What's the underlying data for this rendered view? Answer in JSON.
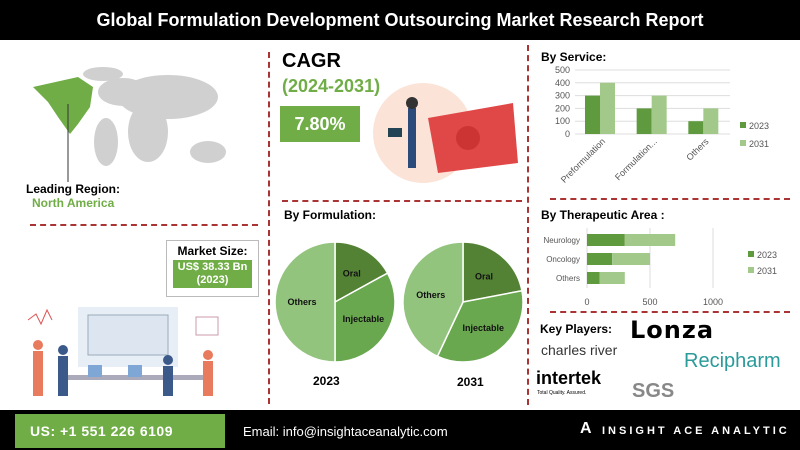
{
  "header": {
    "title": "Global Formulation Development Outsourcing Market Research Report"
  },
  "region": {
    "label": "Leading Region:",
    "value": "North America"
  },
  "market_size": {
    "label": "Market Size:",
    "value": "US$ 38.33 Bn",
    "year": "(2023)"
  },
  "cagr": {
    "label": "CAGR",
    "period": "(2024-2031)",
    "value": "7.80%"
  },
  "colors": {
    "accent": "#70ad47",
    "dark": "#548235",
    "light": "#a9d08e",
    "divider": "#aa3333"
  },
  "chart_data": [
    {
      "type": "bar",
      "title": "By Service:",
      "categories": [
        "Preformulation",
        "Formulation...",
        "Others"
      ],
      "series": [
        {
          "name": "2023",
          "values": [
            300,
            200,
            100
          ]
        },
        {
          "name": "2031",
          "values": [
            400,
            300,
            200
          ]
        }
      ],
      "ylim": [
        0,
        500
      ],
      "yticks": [
        0,
        100,
        200,
        300,
        400,
        500
      ],
      "legend": "right",
      "grid": true
    },
    {
      "type": "bar",
      "orientation": "horizontal-stacked",
      "title": "By Therapeutic Area :",
      "categories": [
        "Neurology",
        "Oncology",
        "Others"
      ],
      "series": [
        {
          "name": "2023",
          "values": [
            300,
            200,
            100
          ]
        },
        {
          "name": "2031",
          "values": [
            400,
            300,
            200
          ]
        }
      ],
      "xlim": [
        0,
        1000
      ],
      "xticks": [
        0,
        500,
        1000
      ],
      "legend": "right",
      "grid": true
    },
    {
      "type": "pie",
      "title": "By Formulation:",
      "label": "2023",
      "slices": [
        {
          "name": "Oral",
          "value": 17
        },
        {
          "name": "Injectable",
          "value": 33
        },
        {
          "name": "Others",
          "value": 50
        }
      ]
    },
    {
      "type": "pie",
      "label": "2031",
      "slices": [
        {
          "name": "Oral",
          "value": 22
        },
        {
          "name": "Injectable",
          "value": 35
        },
        {
          "name": "Others",
          "value": 43
        }
      ]
    }
  ],
  "key_players": {
    "label": "Key Players:",
    "logos": [
      "Lonza",
      "charles river",
      "Recipharm",
      "intertek",
      "Total Quality. Assured.",
      "SGS"
    ]
  },
  "footer": {
    "phone": "US: +1 551 226 6109",
    "email": "Email: info@insightaceanalytic.com",
    "brand": "INSIGHT ACE ANALYTIC"
  }
}
